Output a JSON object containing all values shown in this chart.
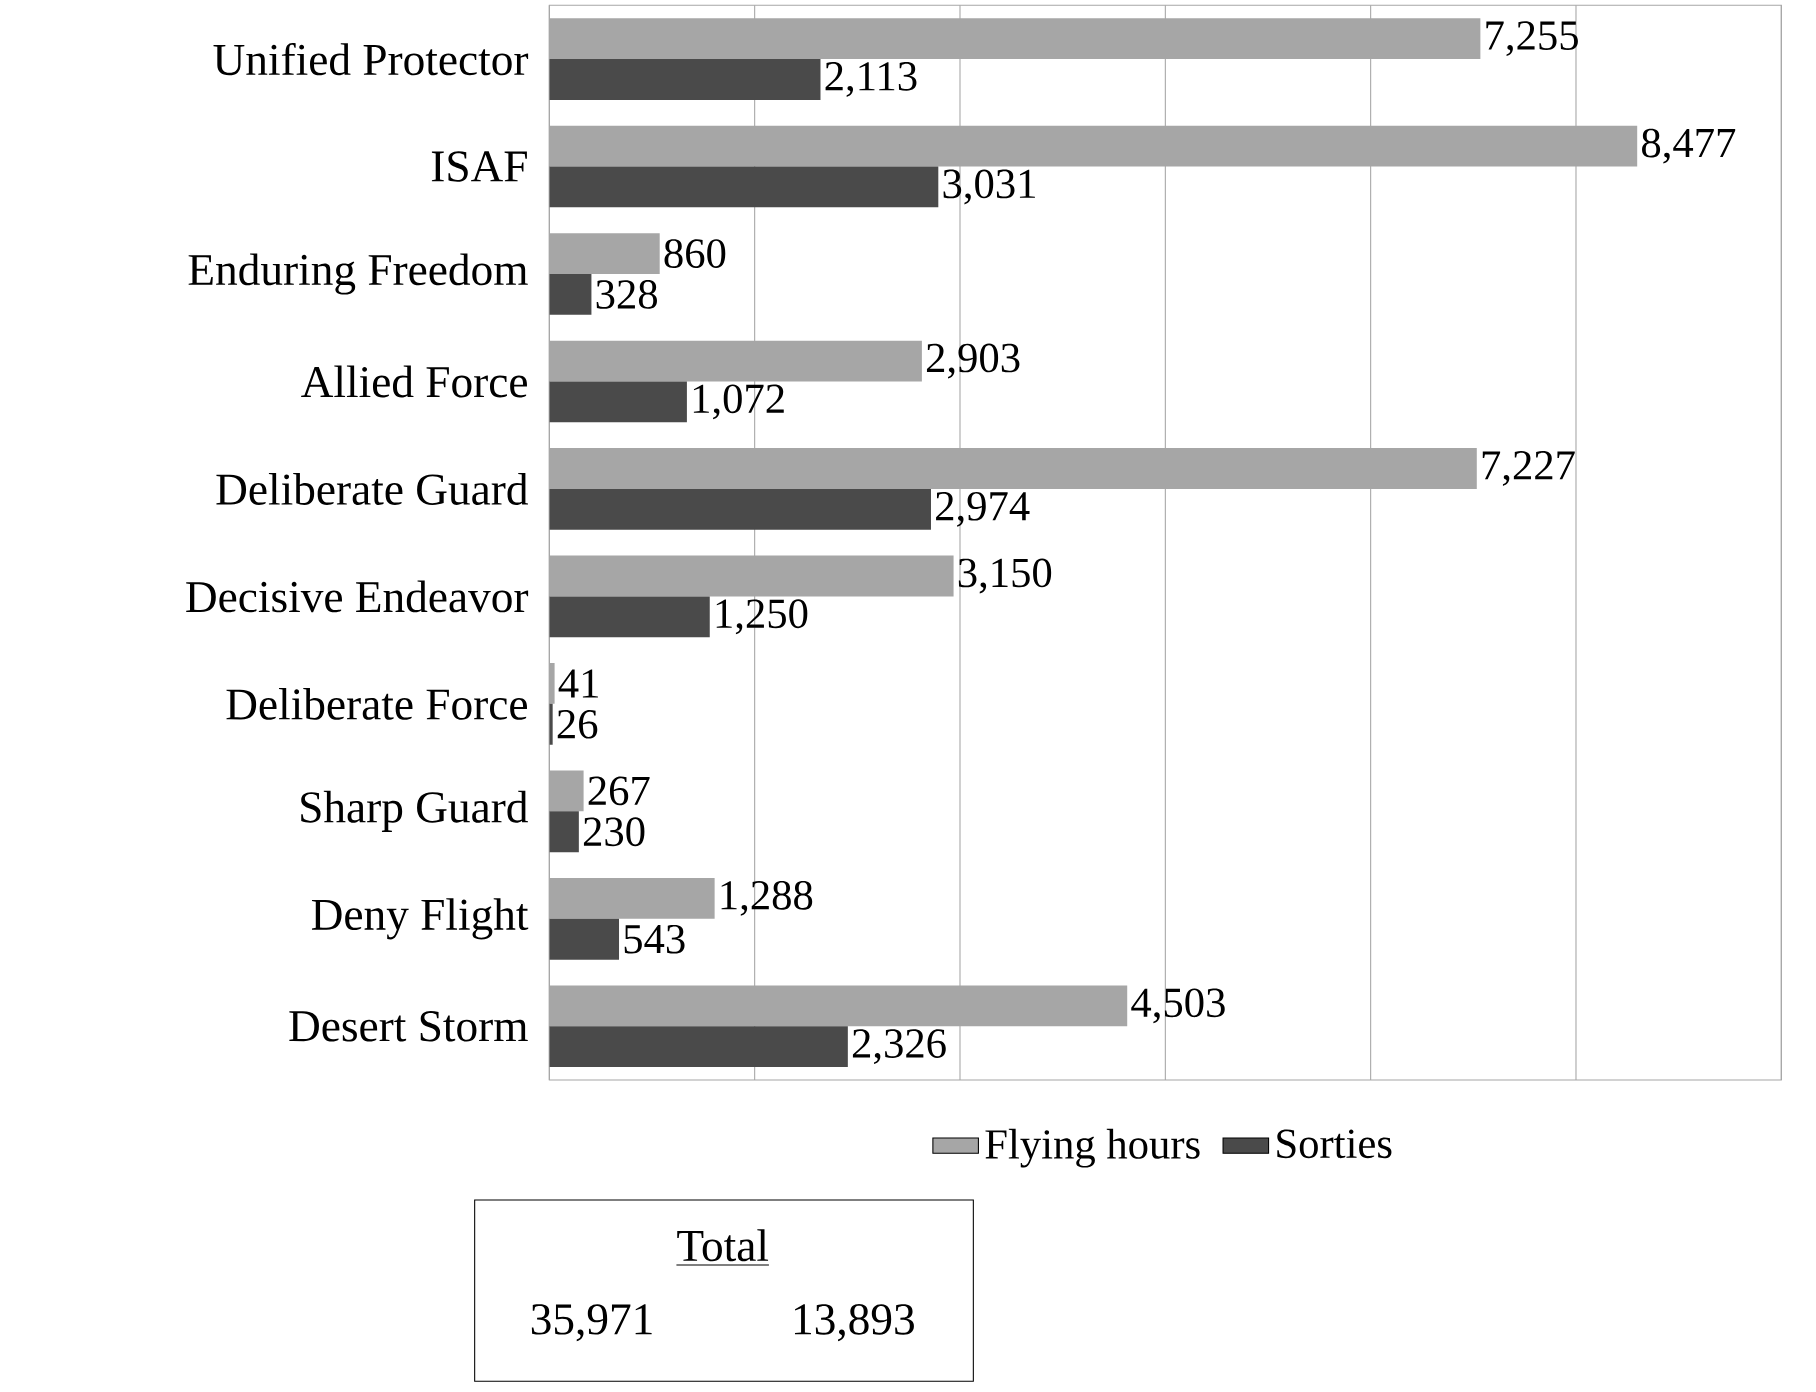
{
  "chart_data": {
    "type": "bar",
    "orientation": "horizontal",
    "categories": [
      "Unified Protector",
      "ISAF",
      "Enduring Freedom",
      "Allied Force",
      "Deliberate Guard",
      "Decisive Endeavor",
      "Deliberate Force",
      "Sharp Guard",
      "Deny Flight",
      "Desert Storm"
    ],
    "series": [
      {
        "name": "Flying hours",
        "color": "#a6a6a6",
        "values": [
          7255,
          8477,
          860,
          2903,
          7227,
          3150,
          41,
          267,
          1288,
          4503
        ],
        "value_labels": [
          "7,255",
          "8,477",
          "860",
          "2,903",
          "7,227",
          "3,150",
          "41",
          "267",
          "1,288",
          "4,503"
        ]
      },
      {
        "name": "Sorties",
        "color": "#4a4a4a",
        "values": [
          2113,
          3031,
          328,
          1072,
          2974,
          1250,
          26,
          230,
          543,
          2326
        ],
        "value_labels": [
          "2,113",
          "3,031",
          "328",
          "1,072",
          "2,974",
          "1,250",
          "26",
          "230",
          "543",
          "2,326"
        ]
      }
    ],
    "xlim": [
      0,
      9600
    ],
    "xticks": [
      {
        "value": 0,
        "label": null
      },
      {
        "value": 1600,
        "label": null
      },
      {
        "value": 3200,
        "label": null
      },
      {
        "value": 4800,
        "label": null
      },
      {
        "value": 6400,
        "label": null
      },
      {
        "value": 8000,
        "label": null
      },
      {
        "value": 9600,
        "label": null
      }
    ],
    "tick_labels": "y",
    "grid": "x",
    "legend": "bottom",
    "annotations": [
      "Total",
      "35,971",
      "13,893"
    ]
  }
}
